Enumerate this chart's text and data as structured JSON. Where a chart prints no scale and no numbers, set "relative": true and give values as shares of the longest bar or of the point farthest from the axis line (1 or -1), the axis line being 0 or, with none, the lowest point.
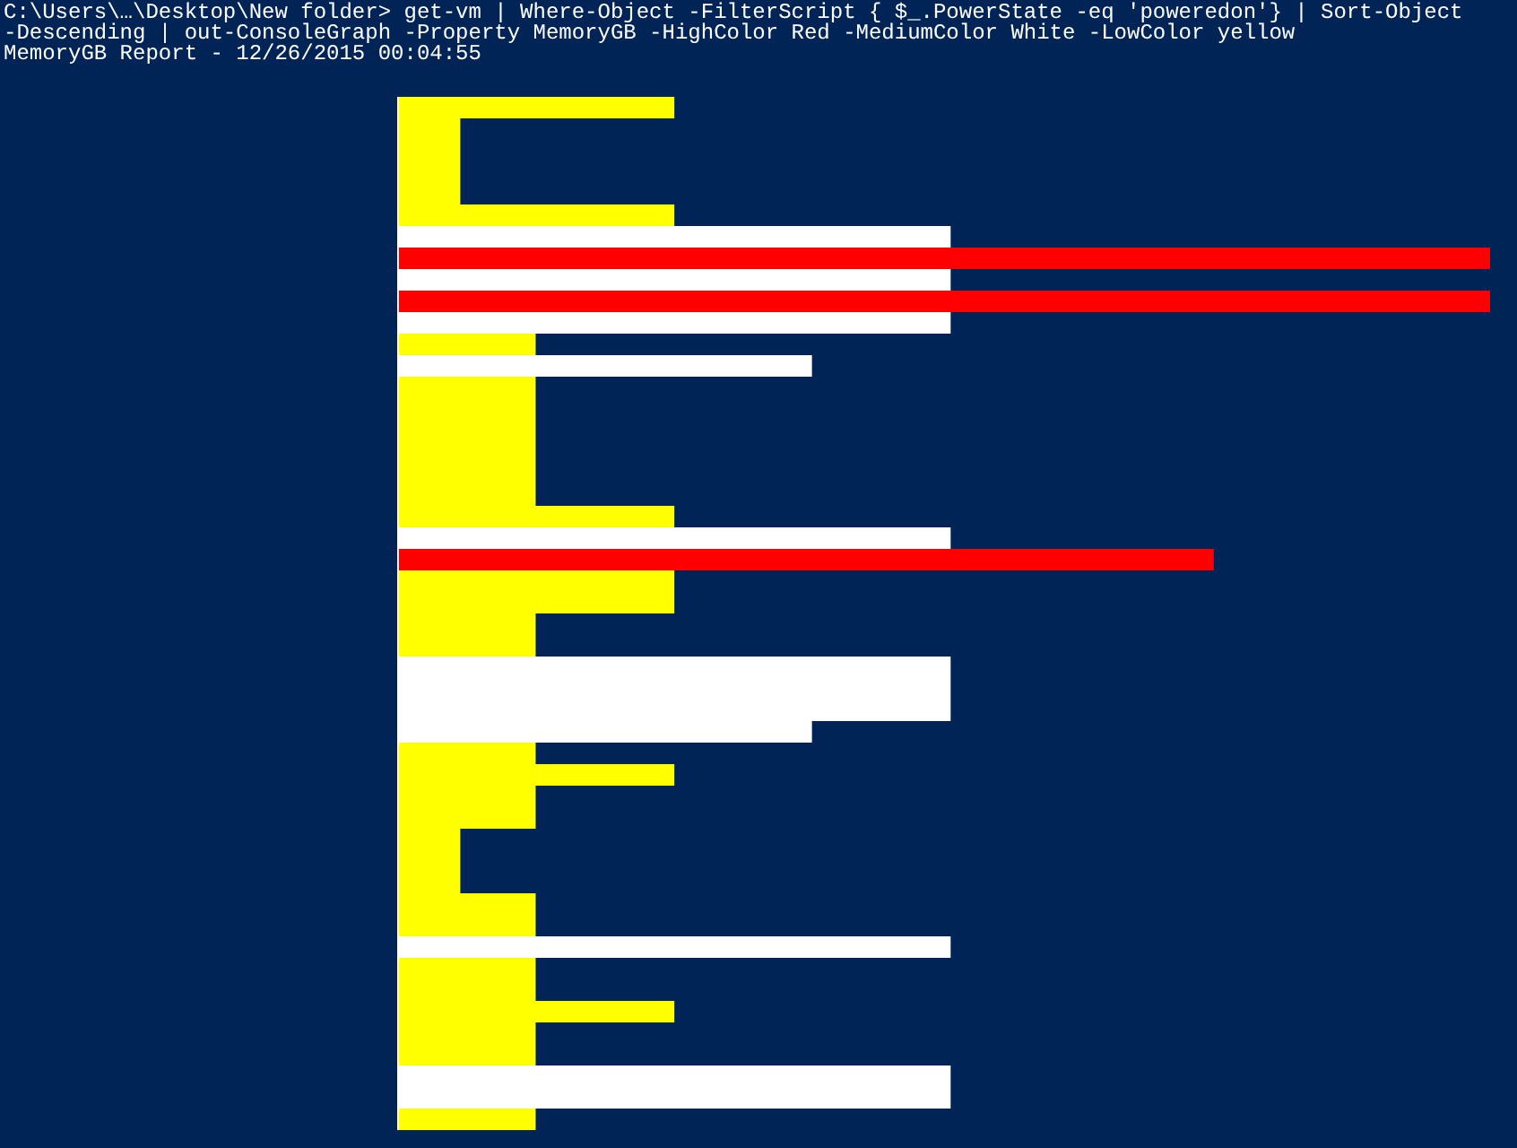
{
  "chart_data": {
    "type": "bar",
    "orientation": "horizontal",
    "relative": true,
    "title": "C:\\Users\\…\\Desktop\\New folder> get-vm | Where-Object -FilterScript { $_.PowerState -eq 'poweredon'} | Sort-Object -Descending | out-ConsoleGraph -Property MemoryGB -HighColor Red -MediumColor White -LowColor yellow",
    "subtitle": "MemoryGB Report - 12/26/2015 00:04:55",
    "categories": [
      null,
      null,
      null,
      null,
      null,
      null,
      null,
      null,
      null,
      null,
      null,
      null,
      null,
      null,
      null,
      null,
      null,
      null,
      null,
      null,
      null,
      null,
      null,
      null,
      null,
      null,
      null,
      null,
      null,
      null,
      null,
      null,
      null,
      null,
      null,
      null,
      null,
      null,
      null,
      null,
      null,
      null,
      null,
      null,
      null,
      null,
      null,
      null
    ],
    "values": [
      0.253,
      0.057,
      0.057,
      0.057,
      0.057,
      0.253,
      0.506,
      1,
      0.506,
      1,
      0.506,
      0.126,
      0.379,
      0.126,
      0.126,
      0.126,
      0.126,
      0.126,
      0.126,
      0.253,
      0.506,
      0.747,
      0.253,
      0.253,
      0.126,
      0.126,
      0.506,
      0.506,
      0.506,
      0.379,
      0.126,
      0.253,
      0.126,
      0.126,
      0.057,
      0.057,
      0.057,
      0.126,
      0.126,
      0.506,
      0.126,
      0.126,
      0.253,
      0.126,
      0.126,
      0.506,
      0.506,
      0.126
    ],
    "colors": [
      "#ffff00",
      "#ffff00",
      "#ffff00",
      "#ffff00",
      "#ffff00",
      "#ffff00",
      "#ffffff",
      "#ff0000",
      "#ffffff",
      "#ff0000",
      "#ffffff",
      "#ffff00",
      "#ffffff",
      "#ffff00",
      "#ffff00",
      "#ffff00",
      "#ffff00",
      "#ffff00",
      "#ffff00",
      "#ffff00",
      "#ffffff",
      "#ff0000",
      "#ffff00",
      "#ffff00",
      "#ffff00",
      "#ffff00",
      "#ffffff",
      "#ffffff",
      "#ffffff",
      "#ffffff",
      "#ffff00",
      "#ffff00",
      "#ffff00",
      "#ffff00",
      "#ffff00",
      "#ffff00",
      "#ffff00",
      "#ffff00",
      "#ffff00",
      "#ffffff",
      "#ffff00",
      "#ffff00",
      "#ffff00",
      "#ffff00",
      "#ffff00",
      "#ffffff",
      "#ffffff",
      "#ffff00"
    ]
  }
}
